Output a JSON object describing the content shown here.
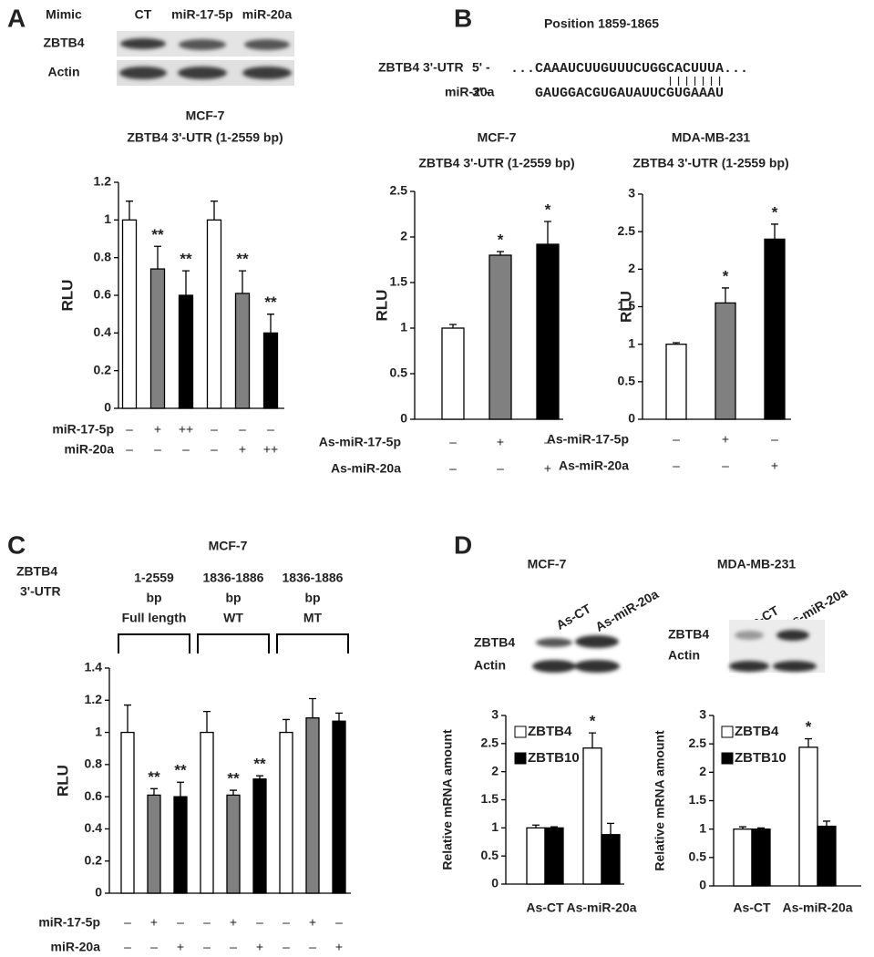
{
  "panel_labels": [
    "A",
    "B",
    "C",
    "D"
  ],
  "blot_a": {
    "header": "Mimic",
    "lanes": [
      "CT",
      "miR-17-5p",
      "miR-20a"
    ],
    "rows": [
      "ZBTB4",
      "Actin"
    ]
  },
  "sequence": {
    "title": "Position 1859-1865",
    "rows": [
      {
        "name": "ZBTB4 3'-UTR",
        "end": "5' -",
        "seq": "...CAAAUCUUGUUUCUGGCACUUUA..."
      },
      {
        "name": "miR-20a",
        "end": "3' -",
        "seq": "GAUGGACGUGAUAUUCGUGAAAU"
      }
    ]
  },
  "panel_c_side": [
    "ZBTB4",
    "3'-UTR"
  ],
  "blots_d": [
    {
      "title": "MCF-7",
      "lanes": [
        "As-CT",
        "As-miR-20a"
      ],
      "rows": [
        "ZBTB4",
        "Actin"
      ]
    },
    {
      "title": "MDA-MB-231",
      "lanes": [
        "As-CT",
        "As-miR-20a"
      ],
      "rows": [
        "ZBTB4",
        "Actin"
      ]
    }
  ],
  "chart_data": [
    {
      "type": "bar",
      "title": [
        "MCF-7",
        "ZBTB4  3'-UTR (1-2559 bp)"
      ],
      "ylabel": "RLU",
      "values": [
        1,
        0.74,
        0.6,
        1,
        0.61,
        0.4
      ],
      "errors": [
        0.1,
        0.12,
        0.13,
        0.1,
        0.12,
        0.1
      ],
      "colors": [
        "#ffffff",
        "#808080",
        "#000000",
        "#ffffff",
        "#808080",
        "#000000"
      ],
      "significance": [
        null,
        "**",
        "**",
        null,
        "**",
        "**"
      ],
      "ylim": [
        0,
        1.2
      ],
      "yticks": [
        0,
        0.2,
        0.4,
        0.6,
        0.8,
        1,
        1.2
      ],
      "conditions": [
        {
          "name": "miR-17-5p",
          "marks": [
            "–",
            "+",
            "++",
            "–",
            "–",
            "–"
          ]
        },
        {
          "name": "miR-20a",
          "marks": [
            "–",
            "–",
            "–",
            "–",
            "+",
            "++"
          ]
        }
      ]
    },
    {
      "type": "bar",
      "title": [
        "MCF-7",
        "ZBTB4  3'-UTR (1-2559 bp)"
      ],
      "ylabel": "RLU",
      "values": [
        1,
        1.8,
        1.92
      ],
      "errors": [
        0.04,
        0.04,
        0.25
      ],
      "colors": [
        "#ffffff",
        "#808080",
        "#000000"
      ],
      "significance": [
        null,
        "*",
        "*"
      ],
      "ylim": [
        0,
        2.5
      ],
      "yticks": [
        0,
        0.5,
        1,
        1.5,
        2,
        2.5
      ],
      "conditions": [
        {
          "name": "As-miR-17-5p",
          "marks": [
            "–",
            "+",
            "–"
          ]
        },
        {
          "name": "As-miR-20a",
          "marks": [
            "–",
            "–",
            "+"
          ]
        }
      ]
    },
    {
      "type": "bar",
      "title": [
        "MDA-MB-231",
        "ZBTB4  3'-UTR (1-2559 bp)"
      ],
      "ylabel": "RLU",
      "values": [
        1,
        1.55,
        2.4
      ],
      "errors": [
        0.02,
        0.2,
        0.2
      ],
      "colors": [
        "#ffffff",
        "#808080",
        "#000000"
      ],
      "significance": [
        null,
        "*",
        "*"
      ],
      "ylim": [
        0,
        3
      ],
      "yticks": [
        0,
        0.5,
        1,
        1.5,
        2,
        2.5,
        3
      ],
      "conditions": [
        {
          "name": "As-miR-17-5p",
          "marks": [
            "–",
            "+",
            "–"
          ]
        },
        {
          "name": "As-miR-20a",
          "marks": [
            "–",
            "–",
            "+"
          ]
        }
      ]
    },
    {
      "type": "bar",
      "title": [
        "MCF-7"
      ],
      "ylabel": "RLU",
      "values": [
        1,
        0.61,
        0.6,
        1,
        0.61,
        0.71,
        1,
        1.09,
        1.07
      ],
      "errors": [
        0.17,
        0.04,
        0.09,
        0.13,
        0.03,
        0.02,
        0.08,
        0.12,
        0.05
      ],
      "colors": [
        "#ffffff",
        "#808080",
        "#000000",
        "#ffffff",
        "#808080",
        "#000000",
        "#ffffff",
        "#808080",
        "#000000"
      ],
      "significance": [
        null,
        "**",
        "**",
        null,
        "**",
        "**",
        null,
        null,
        null
      ],
      "groups": [
        [
          "1-2559",
          "bp",
          "Full length"
        ],
        [
          "1836-1886",
          "bp",
          "WT"
        ],
        [
          "1836-1886",
          "bp",
          "MT"
        ]
      ],
      "ylim": [
        0,
        1.4
      ],
      "yticks": [
        0,
        0.2,
        0.4,
        0.6,
        0.8,
        1,
        1.2,
        1.4
      ],
      "conditions": [
        {
          "name": "miR-17-5p",
          "marks": [
            "–",
            "+",
            "–",
            "–",
            "+",
            "–",
            "–",
            "+",
            "–"
          ]
        },
        {
          "name": "miR-20a",
          "marks": [
            "–",
            "–",
            "+",
            "–",
            "–",
            "+",
            "–",
            "–",
            "+"
          ]
        }
      ]
    },
    {
      "type": "grouped_bar",
      "ylabel": "Relative mRNA amount",
      "categories": [
        "As-CT",
        "As-miR-20a"
      ],
      "series": [
        {
          "name": "ZBTB4",
          "color": "#ffffff",
          "values": [
            1,
            2.42
          ],
          "errors": [
            0.05,
            0.27
          ],
          "significance": [
            null,
            "*"
          ]
        },
        {
          "name": "ZBTB10",
          "color": "#000000",
          "values": [
            1,
            0.88
          ],
          "errors": [
            0.02,
            0.2
          ],
          "significance": [
            null,
            null
          ]
        }
      ],
      "ylim": [
        0,
        3
      ],
      "yticks": [
        0,
        0.5,
        1,
        1.5,
        2,
        2.5,
        3
      ]
    },
    {
      "type": "grouped_bar",
      "ylabel": "Relative mRNA amount",
      "categories": [
        "As-CT",
        "As-miR-20a"
      ],
      "series": [
        {
          "name": "ZBTB4",
          "color": "#ffffff",
          "values": [
            1,
            2.44
          ],
          "errors": [
            0.04,
            0.15
          ],
          "significance": [
            null,
            "*"
          ]
        },
        {
          "name": "ZBTB10",
          "color": "#000000",
          "values": [
            1,
            1.05
          ],
          "errors": [
            0.02,
            0.09
          ],
          "significance": [
            null,
            null
          ]
        }
      ],
      "ylim": [
        0,
        3
      ],
      "yticks": [
        0,
        0.5,
        1,
        1.5,
        2,
        2.5,
        3
      ]
    }
  ]
}
